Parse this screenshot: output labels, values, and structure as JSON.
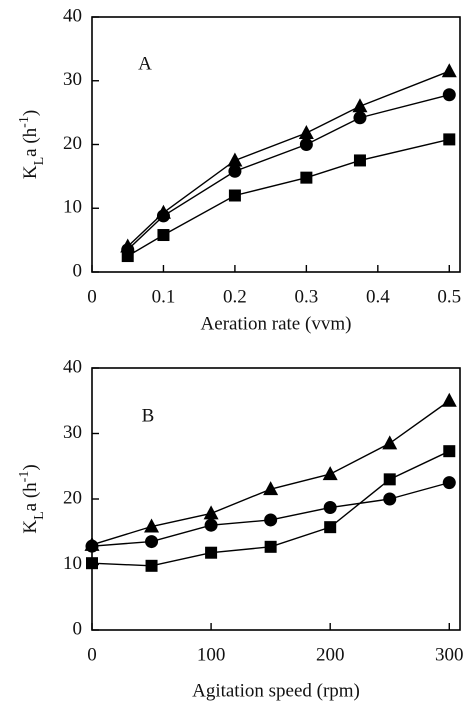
{
  "chart_data": [
    {
      "type": "line",
      "annotation": "A",
      "xlabel": "Aeration rate  (vvm)",
      "ylabel": [
        {
          "text": "K"
        },
        {
          "text": "L",
          "script": "sub"
        },
        {
          "text": "a  (h"
        },
        {
          "text": "-1",
          "script": "super"
        },
        {
          "text": ")"
        }
      ],
      "x": [
        0.05,
        0.1,
        0.2,
        0.3,
        0.375,
        0.5
      ],
      "series": [
        {
          "marker": "triangle",
          "color": "#000000",
          "values": [
            4,
            9.3,
            17.5,
            21.8,
            26,
            31.5
          ]
        },
        {
          "marker": "circle",
          "color": "#000000",
          "values": [
            3.5,
            8.8,
            15.8,
            20,
            24.2,
            27.8
          ]
        },
        {
          "marker": "square",
          "color": "#000000",
          "values": [
            2.5,
            5.8,
            12,
            14.8,
            17.5,
            20.8
          ]
        }
      ],
      "xlim": [
        0,
        0.515
      ],
      "xticks": [
        0,
        0.1,
        0.2,
        0.3,
        0.4,
        0.5
      ],
      "ylim": [
        0,
        40
      ],
      "yticks": [
        0,
        10,
        20,
        30,
        40
      ]
    },
    {
      "type": "line",
      "annotation": "B",
      "xlabel": "Agitation speed  (rpm)",
      "ylabel": [
        {
          "text": "K"
        },
        {
          "text": "L",
          "script": "sub"
        },
        {
          "text": "a  (h"
        },
        {
          "text": "-1",
          "script": "super"
        },
        {
          "text": ")"
        }
      ],
      "x": [
        0,
        50,
        100,
        150,
        200,
        250,
        300
      ],
      "series": [
        {
          "marker": "triangle",
          "color": "#000000",
          "values": [
            13,
            15.8,
            17.8,
            21.5,
            23.8,
            28.5,
            35
          ]
        },
        {
          "marker": "circle",
          "color": "#000000",
          "values": [
            12.8,
            13.5,
            16,
            16.8,
            18.7,
            20,
            22.5
          ]
        },
        {
          "marker": "square",
          "color": "#000000",
          "values": [
            10.2,
            9.8,
            11.8,
            12.7,
            15.7,
            23,
            27.3
          ]
        }
      ],
      "xlim": [
        0,
        309
      ],
      "xticks": [
        0,
        100,
        200,
        300
      ],
      "ylim": [
        0,
        40
      ],
      "yticks": [
        0,
        10,
        20,
        30,
        40
      ]
    }
  ]
}
